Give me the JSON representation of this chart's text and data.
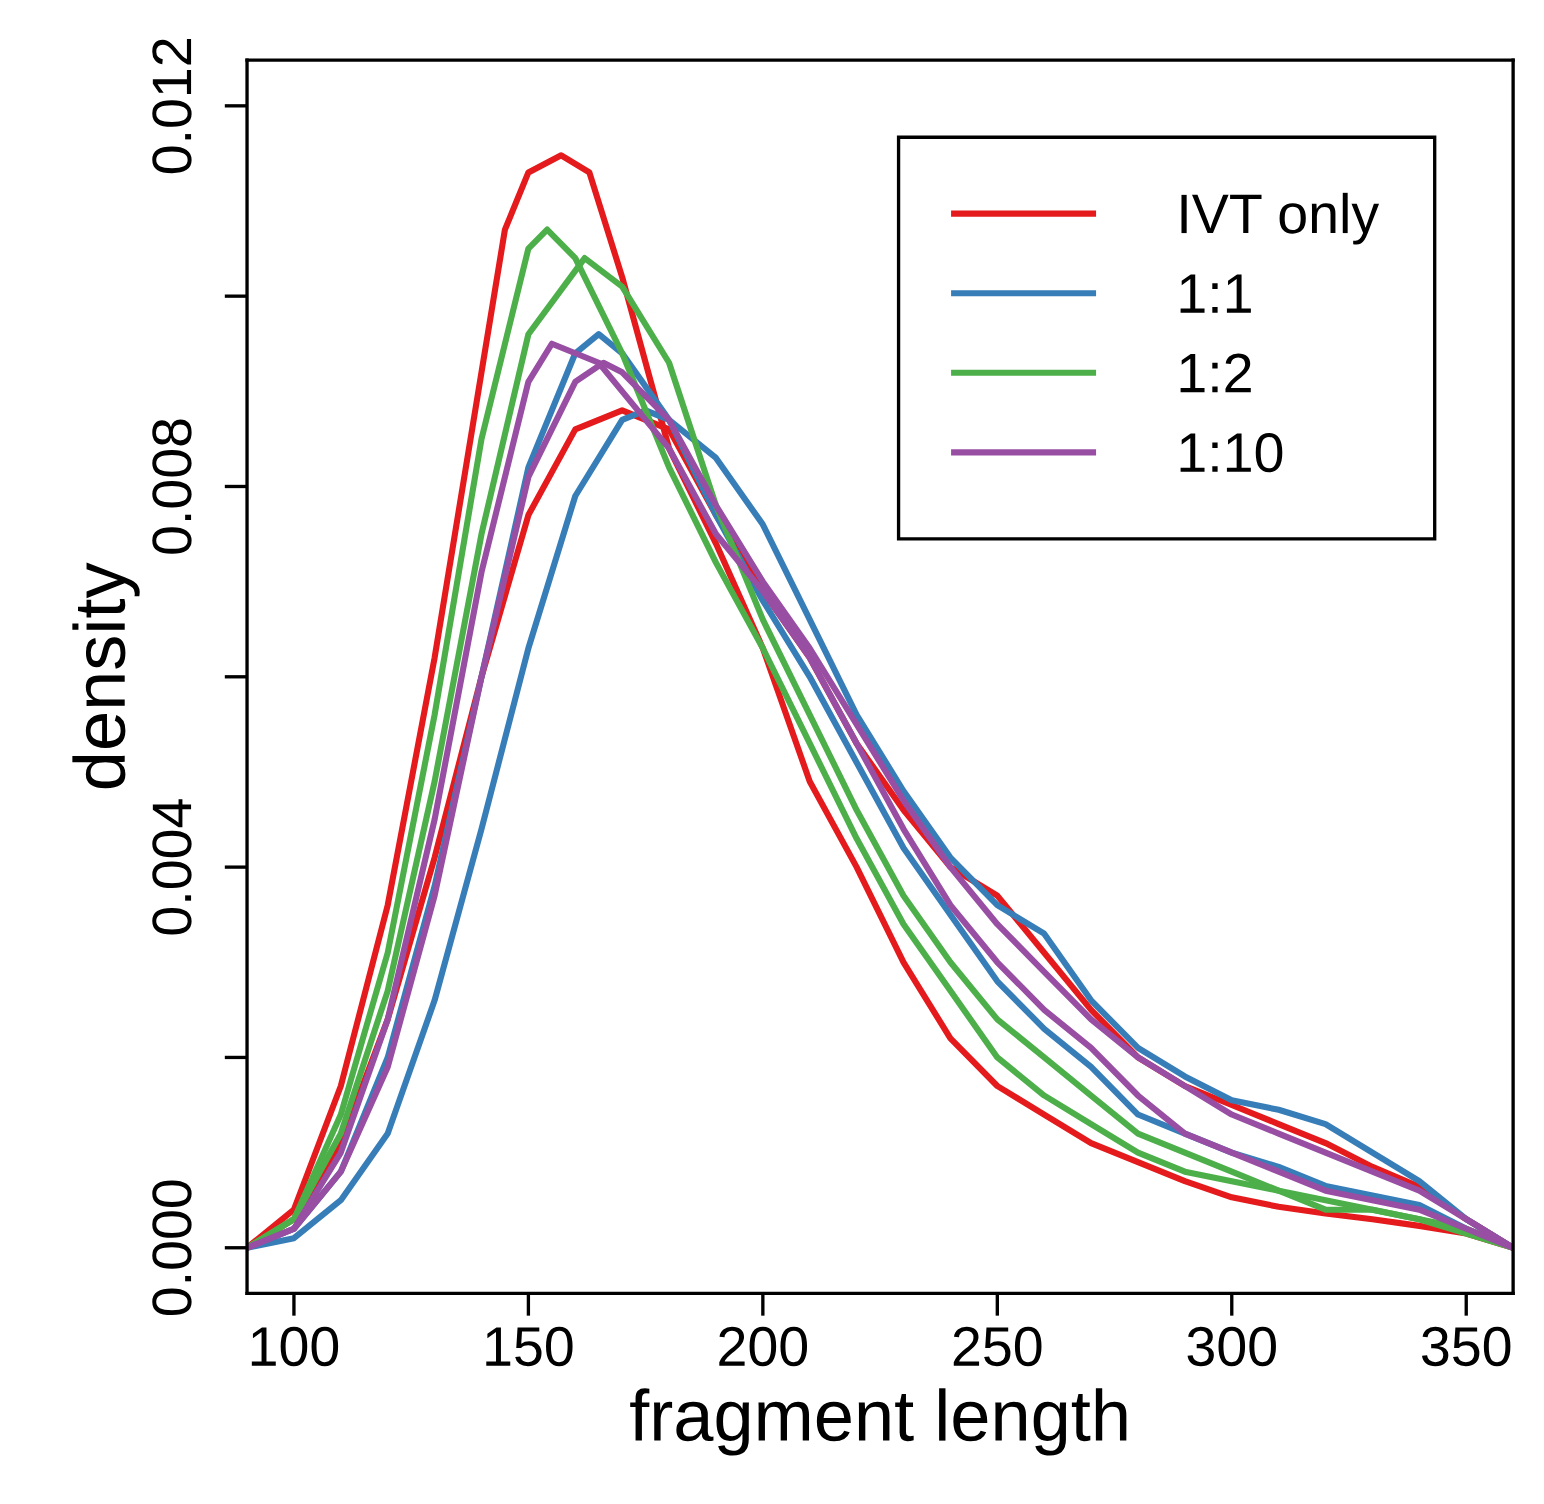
{
  "chart_data": {
    "type": "line",
    "xlabel": "fragment length",
    "ylabel": "density",
    "xlim": [
      90,
      360
    ],
    "xticks": [
      100,
      150,
      200,
      250,
      300,
      350
    ],
    "ylim": [
      -0.00048,
      0.01248
    ],
    "yticks": [
      {
        "value": 0,
        "label": "0.000"
      },
      {
        "value": 0.002,
        "label": null
      },
      {
        "value": 0.004,
        "label": "0.004"
      },
      {
        "value": 0.006,
        "label": null
      },
      {
        "value": 0.008,
        "label": "0.008"
      },
      {
        "value": 0.01,
        "label": null
      },
      {
        "value": 0.012,
        "label": "0.012"
      }
    ],
    "grid": false,
    "legend": "top right",
    "line_style": "solid",
    "marker": "none",
    "series": [
      {
        "name": "IVT only",
        "color": "#e41a1c",
        "x": [
          90,
          100,
          110,
          120,
          130,
          140,
          145,
          150,
          157,
          163,
          170,
          180,
          190,
          200,
          210,
          220,
          230,
          240,
          250,
          260,
          270,
          280,
          290,
          300,
          310,
          320,
          330,
          340,
          350,
          360
        ],
        "values": [
          0,
          0.0004,
          0.0017,
          0.0036,
          0.0062,
          0.0092,
          0.0107,
          0.0113,
          0.01148,
          0.0113,
          0.0102,
          0.0084,
          0.0074,
          0.0063,
          0.0049,
          0.004,
          0.003,
          0.0022,
          0.0017,
          0.0014,
          0.0011,
          0.0009,
          0.0007,
          0.00053,
          0.00043,
          0.00036,
          0.0003,
          0.00023,
          0.00015,
          0
        ]
      },
      {
        "color": "#e41a1c",
        "x": [
          90,
          100,
          110,
          120,
          130,
          140,
          150,
          160,
          170,
          180,
          190,
          200,
          210,
          220,
          230,
          240,
          250,
          260,
          270,
          280,
          290,
          300,
          310,
          320,
          330,
          340,
          350,
          360
        ],
        "values": [
          0,
          0.0003,
          0.0011,
          0.0024,
          0.0041,
          0.006,
          0.0077,
          0.0086,
          0.0088,
          0.0086,
          0.0077,
          0.0069,
          0.0062,
          0.0053,
          0.0046,
          0.004,
          0.0037,
          0.0031,
          0.0025,
          0.002,
          0.0017,
          0.0015,
          0.0013,
          0.0011,
          0.00085,
          0.00064,
          0.0003,
          0
        ]
      },
      {
        "name": "1:1",
        "color": "#377eb8",
        "x": [
          90,
          100,
          110,
          120,
          130,
          140,
          150,
          160,
          165,
          170,
          180,
          190,
          200,
          210,
          220,
          230,
          240,
          250,
          260,
          270,
          280,
          290,
          300,
          310,
          320,
          330,
          340,
          350,
          360
        ],
        "values": [
          0,
          0.0002,
          0.0008,
          0.002,
          0.0038,
          0.006,
          0.0082,
          0.0094,
          0.0096,
          0.0094,
          0.0087,
          0.0077,
          0.0068,
          0.006,
          0.0051,
          0.0042,
          0.0035,
          0.0028,
          0.0023,
          0.0019,
          0.0014,
          0.0012,
          0.001,
          0.00085,
          0.00065,
          0.00055,
          0.00045,
          0.0002,
          0
        ]
      },
      {
        "color": "#377eb8",
        "x": [
          90,
          100,
          110,
          120,
          130,
          140,
          150,
          160,
          170,
          175,
          180,
          190,
          200,
          210,
          220,
          230,
          240,
          250,
          260,
          270,
          280,
          290,
          300,
          310,
          320,
          330,
          340,
          350,
          360
        ],
        "values": [
          0,
          0.0001,
          0.0005,
          0.0012,
          0.0026,
          0.0044,
          0.0063,
          0.0079,
          0.0087,
          0.0088,
          0.0087,
          0.0083,
          0.0076,
          0.0066,
          0.0056,
          0.0048,
          0.0041,
          0.0036,
          0.0033,
          0.0026,
          0.0021,
          0.0018,
          0.00155,
          0.00145,
          0.0013,
          0.001,
          0.0007,
          0.0003,
          0
        ]
      },
      {
        "name": "1:2",
        "color": "#4daf4a",
        "x": [
          90,
          100,
          110,
          120,
          130,
          140,
          150,
          154,
          160,
          170,
          180,
          190,
          200,
          210,
          220,
          230,
          240,
          250,
          260,
          270,
          280,
          290,
          300,
          310,
          320,
          330,
          340,
          350,
          360
        ],
        "values": [
          0,
          0.0003,
          0.0014,
          0.0031,
          0.0056,
          0.0085,
          0.0105,
          0.0107,
          0.0104,
          0.0094,
          0.0082,
          0.0072,
          0.0063,
          0.0053,
          0.0043,
          0.0034,
          0.0027,
          0.002,
          0.0016,
          0.0013,
          0.001,
          0.0008,
          0.0007,
          0.0006,
          0.0004,
          0.0004,
          0.0003,
          0.00015,
          0
        ]
      },
      {
        "color": "#4daf4a",
        "x": [
          90,
          100,
          110,
          120,
          130,
          140,
          150,
          162,
          170,
          180,
          190,
          200,
          210,
          220,
          230,
          240,
          250,
          260,
          270,
          280,
          290,
          300,
          310,
          320,
          330,
          340,
          350,
          360
        ],
        "values": [
          0,
          0.0003,
          0.0012,
          0.0027,
          0.0049,
          0.0075,
          0.0096,
          0.0104,
          0.0101,
          0.0093,
          0.0078,
          0.0066,
          0.0056,
          0.0046,
          0.0037,
          0.003,
          0.0024,
          0.002,
          0.0016,
          0.0012,
          0.001,
          0.0008,
          0.0006,
          0.0005,
          0.0004,
          0.0003,
          0.0002,
          0
        ]
      },
      {
        "name": "1:10",
        "color": "#984ea3",
        "x": [
          90,
          100,
          110,
          120,
          130,
          140,
          150,
          155,
          165,
          170,
          180,
          190,
          200,
          210,
          220,
          230,
          240,
          250,
          260,
          270,
          280,
          290,
          300,
          310,
          320,
          330,
          340,
          350,
          360
        ],
        "values": [
          0,
          0.0002,
          0.001,
          0.0024,
          0.0045,
          0.0071,
          0.0091,
          0.0095,
          0.0093,
          0.009,
          0.0084,
          0.0075,
          0.0069,
          0.0062,
          0.0053,
          0.0044,
          0.0036,
          0.003,
          0.0025,
          0.0021,
          0.0016,
          0.0012,
          0.001,
          0.0008,
          0.0006,
          0.0005,
          0.0004,
          0.0002,
          0
        ]
      },
      {
        "color": "#984ea3",
        "x": [
          90,
          100,
          110,
          120,
          130,
          140,
          150,
          160,
          166,
          170,
          180,
          190,
          200,
          210,
          220,
          230,
          240,
          250,
          260,
          270,
          280,
          290,
          300,
          310,
          320,
          330,
          340,
          350,
          360
        ],
        "values": [
          0,
          0.0002,
          0.0008,
          0.0019,
          0.0037,
          0.006,
          0.0081,
          0.0091,
          0.0093,
          0.0092,
          0.0087,
          0.0078,
          0.007,
          0.0063,
          0.0055,
          0.0047,
          0.004,
          0.0034,
          0.0029,
          0.0024,
          0.002,
          0.0017,
          0.0014,
          0.0012,
          0.001,
          0.0008,
          0.0006,
          0.0003,
          0
        ]
      }
    ]
  }
}
